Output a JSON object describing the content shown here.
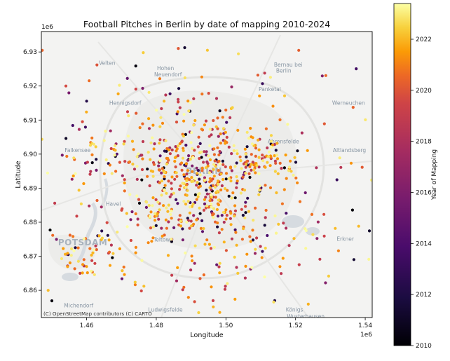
{
  "chart_data": {
    "type": "scatter",
    "title": "Football Pitches in Berlin by date of mapping 2010-2024",
    "xlabel": "Longitude",
    "ylabel": "Latitude",
    "x_offset_label": "1e6",
    "y_offset_label": "1e6",
    "xlim": [
      1.447,
      1.542
    ],
    "ylim": [
      6.852,
      6.936
    ],
    "x_ticks": [
      1.46,
      1.48,
      1.5,
      1.52,
      1.54
    ],
    "x_tick_labels": [
      "1.46",
      "1.48",
      "1.50",
      "1.52",
      "1.54"
    ],
    "y_ticks": [
      6.86,
      6.87,
      6.88,
      6.89,
      6.9,
      6.91,
      6.92,
      6.93
    ],
    "y_tick_labels": [
      "6.86",
      "6.87",
      "6.88",
      "6.89",
      "6.90",
      "6.91",
      "6.92",
      "6.93"
    ],
    "grid": false,
    "colorbar": {
      "label": "Year of Mapping",
      "colormap": "inferno",
      "range": [
        2010,
        2023.4
      ],
      "ticks": [
        2010,
        2012,
        2014,
        2016,
        2018,
        2020,
        2022
      ],
      "tick_labels": [
        "2010",
        "2012",
        "2014",
        "2016",
        "2018",
        "2020",
        "2022"
      ]
    },
    "basemap": {
      "attribution": "(C) OpenStreetMap contributors (C) CARTO",
      "places": [
        {
          "name": "Velten",
          "x": 1.4635,
          "y": 6.9262
        },
        {
          "name": "Hohen",
          "x": 1.4802,
          "y": 6.9247
        },
        {
          "name": "Neuendorf",
          "x": 1.4794,
          "y": 6.9228
        },
        {
          "name": "Bernau bei",
          "x": 1.5138,
          "y": 6.9257
        },
        {
          "name": "Berlin",
          "x": 1.5144,
          "y": 6.924
        },
        {
          "name": "Panketal",
          "x": 1.5094,
          "y": 6.9185
        },
        {
          "name": "Hennigsdorf",
          "x": 1.4665,
          "y": 6.9145
        },
        {
          "name": "Werneuchen",
          "x": 1.5305,
          "y": 6.9145
        },
        {
          "name": "Ahrensfelde",
          "x": 1.512,
          "y": 6.9032
        },
        {
          "name": "Falkensee",
          "x": 1.4537,
          "y": 6.9006
        },
        {
          "name": "Altlandsberg",
          "x": 1.5307,
          "y": 6.9006
        },
        {
          "name": "BERLIN",
          "x": 1.4885,
          "y": 6.8942
        },
        {
          "name": "Havel",
          "x": 1.4655,
          "y": 6.8848
        },
        {
          "name": "Teltow",
          "x": 1.4792,
          "y": 6.8743
        },
        {
          "name": "Erkner",
          "x": 1.5318,
          "y": 6.8745
        },
        {
          "name": "POTSDAM",
          "x": 1.4518,
          "y": 6.8732
        },
        {
          "name": "Michendorf",
          "x": 1.4535,
          "y": 6.855
        },
        {
          "name": "Ludwigsfelde",
          "x": 1.4777,
          "y": 6.8537
        },
        {
          "name": "Königs",
          "x": 1.5172,
          "y": 6.8537
        },
        {
          "name": "Wusterhausen",
          "x": 1.5175,
          "y": 6.8518
        }
      ]
    },
    "clusters": [
      {
        "cx": 1.493,
        "cy": 6.893,
        "sx": 0.0105,
        "sy": 0.0075,
        "n": 430
      },
      {
        "cx": 1.511,
        "cy": 6.899,
        "sx": 0.0055,
        "sy": 0.004,
        "n": 70
      },
      {
        "cx": 1.46,
        "cy": 6.871,
        "sx": 0.006,
        "sy": 0.0035,
        "n": 55
      },
      {
        "cx": 1.462,
        "cy": 6.898,
        "sx": 0.0085,
        "sy": 0.0045,
        "n": 55
      },
      {
        "cx": 1.485,
        "cy": 6.878,
        "sx": 0.0115,
        "sy": 0.005,
        "n": 65
      },
      {
        "cx": 1.506,
        "cy": 6.876,
        "sx": 0.009,
        "sy": 0.005,
        "n": 45
      },
      {
        "cx": 1.48,
        "cy": 6.91,
        "sx": 0.009,
        "sy": 0.006,
        "n": 40
      },
      {
        "cx": 1.495,
        "cy": 6.864,
        "sx": 0.018,
        "sy": 0.006,
        "n": 35
      },
      {
        "cx": 1.495,
        "cy": 6.92,
        "sx": 0.03,
        "sy": 0.008,
        "n": 40
      },
      {
        "cx": 1.528,
        "cy": 6.885,
        "sx": 0.008,
        "sy": 0.012,
        "n": 25
      },
      {
        "cx": 1.495,
        "cy": 6.895,
        "sx": 0.03,
        "sy": 0.025,
        "n": 45
      }
    ],
    "point_count": 905
  }
}
